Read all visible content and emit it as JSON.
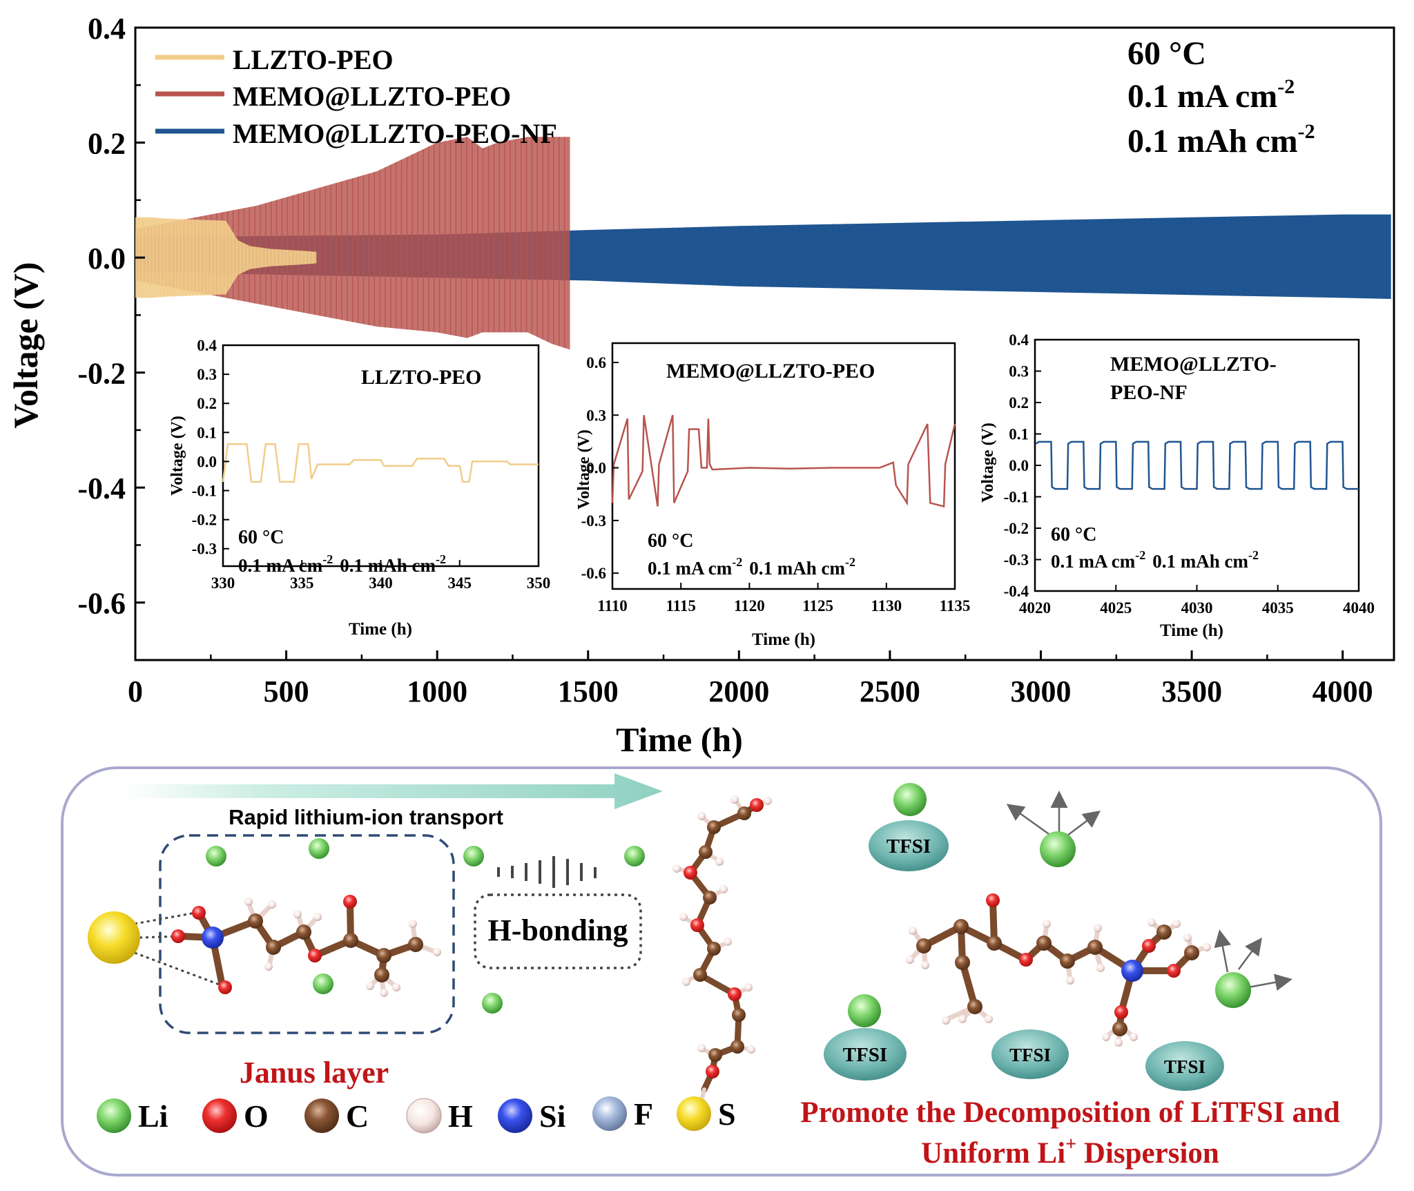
{
  "chart_data": [
    {
      "type": "line",
      "title": "",
      "xlabel": "Time (h)",
      "ylabel": "Voltage (V)",
      "xlim": [
        0,
        4170
      ],
      "ylim": [
        -0.7,
        0.4
      ],
      "xticks": [
        0,
        500,
        1000,
        1500,
        2000,
        2500,
        3000,
        3500,
        4000
      ],
      "yticks": [
        0.4,
        0.2,
        0.0,
        -0.2,
        -0.4,
        -0.6
      ],
      "ytick_labels": [
        "0.4",
        "0.2",
        "0.0",
        "-0.2",
        "-0.4",
        "-0.6"
      ],
      "legend_position": "top-left",
      "conditions": [
        "60 °C",
        "0.1 mA cm",
        "0.1 mAh cm"
      ],
      "condition_superscript": "-2",
      "series": [
        {
          "name": "LLZTO-PEO",
          "color": "#f1cc8a",
          "envelope_x": [
            0,
            50,
            100,
            200,
            300,
            340,
            380,
            450,
            550,
            600
          ],
          "envelope_upper": [
            0.07,
            0.07,
            0.068,
            0.066,
            0.064,
            0.03,
            0.02,
            0.015,
            0.012,
            0.01
          ],
          "envelope_lower": [
            -0.07,
            -0.07,
            -0.068,
            -0.066,
            -0.064,
            -0.03,
            -0.02,
            -0.015,
            -0.012,
            -0.01
          ]
        },
        {
          "name": "MEMO@LLZTO-PEO",
          "color": "#b8544e",
          "envelope_x": [
            0,
            200,
            400,
            600,
            800,
            1000,
            1100,
            1150,
            1200,
            1300,
            1380,
            1440
          ],
          "envelope_upper": [
            0.05,
            0.07,
            0.09,
            0.12,
            0.15,
            0.2,
            0.21,
            0.19,
            0.2,
            0.21,
            0.21,
            0.21
          ],
          "envelope_lower": [
            -0.04,
            -0.06,
            -0.08,
            -0.1,
            -0.12,
            -0.13,
            -0.14,
            -0.13,
            -0.13,
            -0.13,
            -0.15,
            -0.16
          ]
        },
        {
          "name": "MEMO@LLZTO-PEO-NF",
          "color": "#1f5591",
          "envelope_x": [
            0,
            500,
            1000,
            1500,
            2000,
            2500,
            3000,
            3500,
            4000,
            4160
          ],
          "envelope_upper": [
            0.035,
            0.038,
            0.04,
            0.048,
            0.055,
            0.06,
            0.065,
            0.07,
            0.075,
            0.075
          ],
          "envelope_lower": [
            -0.025,
            -0.03,
            -0.035,
            -0.04,
            -0.05,
            -0.055,
            -0.06,
            -0.065,
            -0.07,
            -0.072
          ]
        }
      ]
    },
    {
      "type": "line",
      "title": "LLZTO-PEO",
      "xlabel": "Time (h)",
      "ylabel": "Voltage (V)",
      "xlim": [
        330,
        350
      ],
      "ylim": [
        -0.4,
        0.4
      ],
      "xticks": [
        330,
        335,
        340,
        345,
        350
      ],
      "yticks": [
        0.4,
        0.3,
        0.2,
        0.1,
        0.0,
        -0.1,
        -0.2,
        -0.3
      ],
      "ytick_labels": [
        "0.4",
        "0.3",
        "0.2",
        "0.1",
        "0.0",
        "-0.1",
        "-0.2",
        "-0.3"
      ],
      "annotations": [
        "60 °C",
        "0.1 mA cm",
        "0.1 mAh cm"
      ],
      "annotation_superscript": "-2",
      "series": [
        {
          "name": "LLZTO-PEO",
          "color": "#f1cc8a",
          "x": [
            330,
            330.3,
            330.6,
            331.5,
            331.8,
            332.4,
            332.7,
            333.3,
            333.6,
            334.5,
            334.8,
            335.4,
            335.6,
            336,
            336.2,
            338,
            338.3,
            340,
            340.2,
            342,
            342.3,
            344,
            344.3,
            345,
            345.2,
            345.6,
            345.8,
            348,
            348.2,
            350
          ],
          "y": [
            -0.07,
            0.06,
            0.06,
            0.06,
            -0.07,
            -0.07,
            0.06,
            0.06,
            -0.07,
            -0.07,
            0.06,
            0.06,
            -0.06,
            -0.01,
            -0.01,
            -0.01,
            0.005,
            0.005,
            -0.015,
            -0.015,
            0.01,
            0.01,
            -0.015,
            -0.015,
            -0.07,
            -0.07,
            0.0,
            0.0,
            -0.01,
            -0.01
          ]
        }
      ]
    },
    {
      "type": "line",
      "title": "MEMO@LLZTO-PEO",
      "xlabel": "Time (h)",
      "ylabel": "Voltage (V)",
      "xlim": [
        1110,
        1135
      ],
      "ylim": [
        -0.7,
        0.7
      ],
      "xticks": [
        1110,
        1115,
        1120,
        1125,
        1130,
        1135
      ],
      "yticks": [
        0.6,
        0.3,
        0.0,
        -0.3,
        -0.6
      ],
      "ytick_labels": [
        "0.6",
        "0.3",
        "0.0",
        "-0.3",
        "-0.6"
      ],
      "annotations": [
        "60 °C",
        "0.1 mA cm",
        "0.1 mAh cm"
      ],
      "annotation_superscript": "-2",
      "series": [
        {
          "name": "MEMO@LLZTO-PEO",
          "color": "#b8544e",
          "x": [
            1110,
            1110.1,
            1111.1,
            1111.2,
            1112.2,
            1112.3,
            1113.3,
            1113.4,
            1114.4,
            1114.5,
            1115.5,
            1115.6,
            1116.3,
            1116.5,
            1116.9,
            1117,
            1117.1,
            1117.3,
            1120,
            1123,
            1126,
            1129.5,
            1130.5,
            1130.7,
            1131.5,
            1131.6,
            1133,
            1133.2,
            1134.2,
            1134.3,
            1135
          ],
          "y": [
            -0.2,
            0.02,
            0.28,
            -0.18,
            -0.02,
            0.3,
            -0.22,
            0.02,
            0.3,
            -0.2,
            -0.02,
            0.22,
            0.22,
            0.0,
            0.0,
            0.28,
            0.02,
            -0.01,
            0.0,
            -0.005,
            0.0,
            0.0,
            0.03,
            -0.1,
            -0.2,
            0.02,
            0.25,
            -0.2,
            -0.22,
            0.02,
            0.25
          ]
        }
      ]
    },
    {
      "type": "line",
      "title": "MEMO@LLZTO-PEO-NF",
      "title_lines": [
        "MEMO@LLZTO-",
        "PEO-NF"
      ],
      "xlabel": "Time (h)",
      "ylabel": "Voltage (V)",
      "xlim": [
        4020,
        4040
      ],
      "ylim": [
        -0.4,
        0.4
      ],
      "xticks": [
        4020,
        4025,
        4030,
        4035,
        4040
      ],
      "yticks": [
        0.4,
        0.3,
        0.2,
        0.1,
        0.0,
        -0.1,
        -0.2,
        -0.3,
        -0.4
      ],
      "ytick_labels": [
        "0.4",
        "0.3",
        "0.2",
        "0.1",
        "0.0",
        "-0.1",
        "-0.2",
        "-0.3",
        "-0.4"
      ],
      "annotations": [
        "60 °C",
        "0.1 mA cm",
        "0.1 mAh cm"
      ],
      "annotation_superscript": "-2",
      "series": [
        {
          "name": "MEMO@LLZTO-PEO-NF",
          "color": "#1f5591",
          "period_h": 2,
          "high_v": 0.075,
          "low_v": -0.075,
          "x_start": 4020,
          "x_end": 4040
        }
      ]
    }
  ],
  "schematic": {
    "arrow_label": "Rapid lithium-ion transport",
    "hbond_label": "H-bonding",
    "janus_label": "Janus layer",
    "tfsi_label": "TFSI",
    "promote_line1": "Promote the Decomposition of LiTFSI  and",
    "promote_line2_prefix": "Uniform Li",
    "promote_line2_sup": "+",
    "promote_line2_suffix": " Dispersion",
    "legend": [
      {
        "symbol": "Li",
        "color": "#5cbf4e"
      },
      {
        "symbol": "O",
        "color": "#e0262a"
      },
      {
        "symbol": "C",
        "color": "#7a4a2c"
      },
      {
        "symbol": "H",
        "color": "#f1dcd8"
      },
      {
        "symbol": "Si",
        "color": "#2a44d8"
      },
      {
        "symbol": "F",
        "color": "#9ab0cf"
      },
      {
        "symbol": "S",
        "color": "#f2d622"
      }
    ],
    "colors": {
      "red_text": "#c01418",
      "arrow": "#8fd1c1",
      "tfsi": "#6fb5b0",
      "frame": "#a9a9cf",
      "dash": "#2f4a74"
    }
  }
}
